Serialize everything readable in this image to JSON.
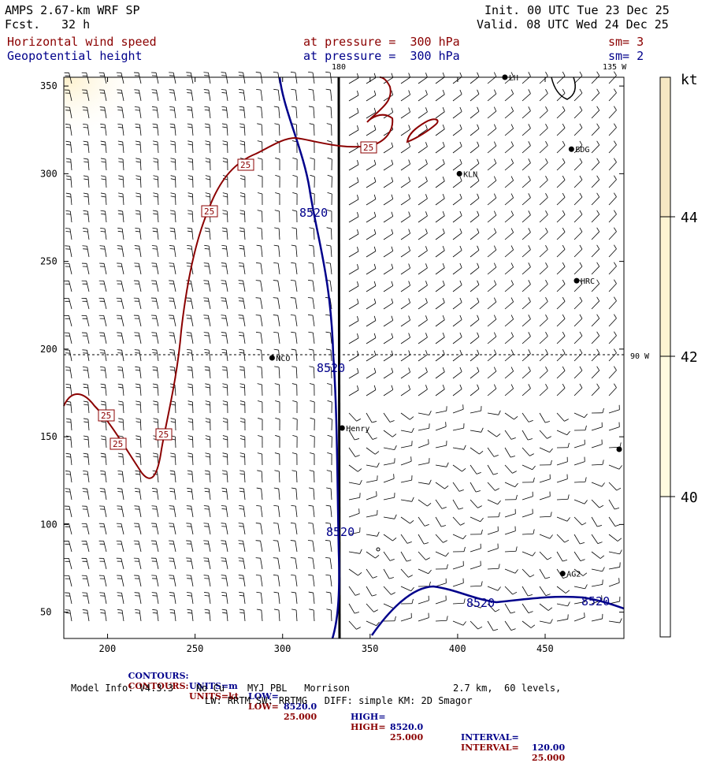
{
  "header": {
    "model": "AMPS 2.67-km WRF SP",
    "forecast_label": "Fcst.",
    "forecast_hours": "32 h",
    "init": "Init. 00 UTC Tue 23 Dec 25",
    "valid": "Valid. 08 UTC Wed 24 Dec 25",
    "field1": "Horizontal wind speed",
    "field1_level": "at pressure =  300 hPa",
    "field1_sm": "sm= 3",
    "field2": "Geopotential height",
    "field2_level": "at pressure =  300 hPa",
    "field2_sm": "sm= 2"
  },
  "map": {
    "lon_label_180": "180",
    "lon_label_135w": "135 W",
    "lon_label_90w": "90 W",
    "x_ticks": [
      "200",
      "250",
      "300",
      "350",
      "400",
      "450"
    ],
    "y_ticks": [
      "350",
      "300",
      "250",
      "200",
      "150",
      "100",
      "50"
    ],
    "stations": [
      {
        "name": "LH",
        "x": 427,
        "y": 355
      },
      {
        "name": "BDG",
        "x": 465,
        "y": 314
      },
      {
        "name": "KLN",
        "x": 401,
        "y": 300
      },
      {
        "name": "HRC",
        "x": 468,
        "y": 239
      },
      {
        "name": "NCO",
        "x": 294,
        "y": 195
      },
      {
        "name": "Henry",
        "x": 334,
        "y": 155
      },
      {
        "name": "AG2",
        "x": 460,
        "y": 72
      }
    ],
    "height_contour_label": "8520",
    "speed_contour_label": "25",
    "colorbar": {
      "unit": "kt",
      "ticks": [
        "40",
        "42",
        "44"
      ],
      "levels": [
        40,
        42,
        44
      ],
      "colors": [
        "#ffffff",
        "#fffbe0",
        "#fdf4d2",
        "#f6e8c3"
      ]
    },
    "colors": {
      "height": "#00008b",
      "speed": "#8b0000"
    }
  },
  "legend": {
    "row1": {
      "label": "CONTOURS:",
      "units": "UNITS=m",
      "low": "LOW=",
      "low_val": "8520.0",
      "high": "HIGH=",
      "high_val": "8520.0",
      "interval": "INTERVAL=",
      "interval_val": "120.00"
    },
    "row2": {
      "label": "CONTOURS:",
      "units": "UNITS=kt",
      "low": "LOW=",
      "low_val": "25.000",
      "high": "HIGH=",
      "high_val": "25.000",
      "interval": "INTERVAL=",
      "interval_val": "25.000"
    }
  },
  "footer": {
    "model_info": "Model Info: V4.3.3    No Cu    MYJ PBL   Morrison",
    "resolution": "2.7 km,  60 levels,",
    "physics": "LW: RRTM SW: RRTMG   DIFF: simple KM: 2D Smagor"
  }
}
